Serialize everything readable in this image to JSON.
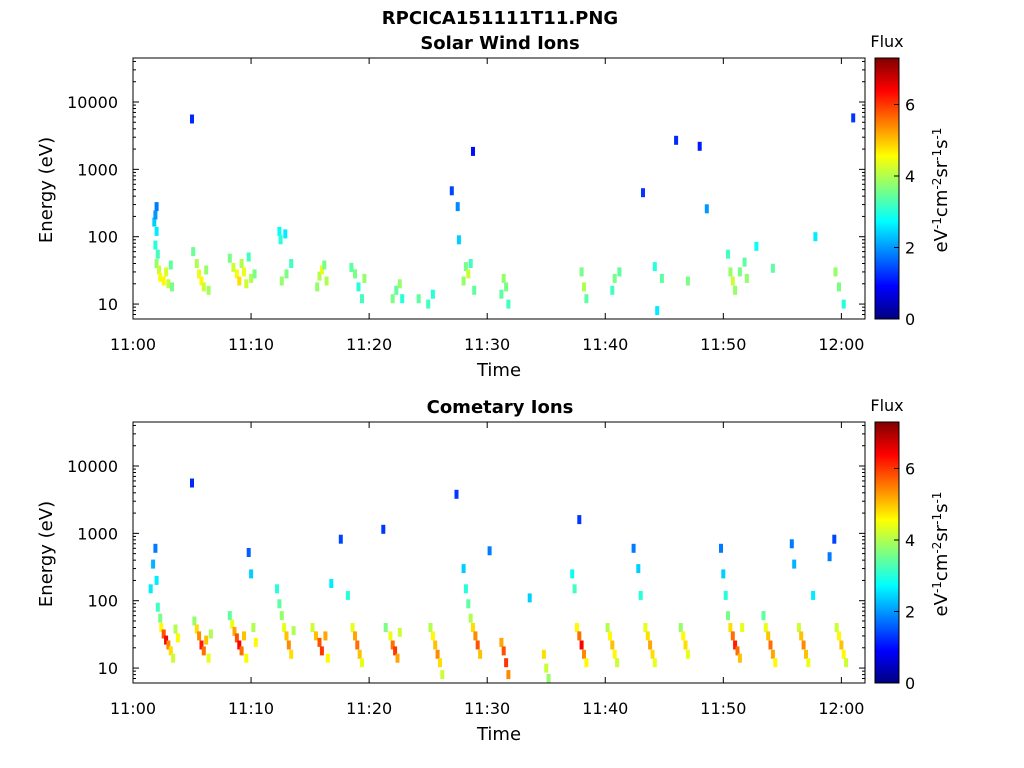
{
  "figure_title": "RPCICA151111T11.PNG",
  "chart_data": [
    {
      "type": "heatmap",
      "title": "Solar Wind Ions",
      "xlabel": "Time",
      "ylabel": "Energy (eV)",
      "x_ticks": [
        "11:00",
        "11:10",
        "11:20",
        "11:30",
        "11:40",
        "11:50",
        "12:00"
      ],
      "x_range_minutes": [
        0,
        62
      ],
      "y_ticks": [
        "10",
        "100",
        "1000",
        "10000"
      ],
      "y_scale": "log",
      "y_range": [
        6,
        45000
      ],
      "colorbar": {
        "title": "Flux",
        "label": "eV-1cm-2sr-1s-1",
        "ticks": [
          "0",
          "2",
          "4",
          "6"
        ],
        "range": [
          0,
          7.3
        ]
      },
      "points": [
        [
          1.8,
          165,
          2.4
        ],
        [
          1.9,
          210,
          2.0
        ],
        [
          2.0,
          280,
          1.8
        ],
        [
          2.0,
          120,
          2.6
        ],
        [
          1.9,
          75,
          3.0
        ],
        [
          2.1,
          55,
          3.2
        ],
        [
          2.0,
          40,
          3.8
        ],
        [
          2.2,
          32,
          4.2
        ],
        [
          2.3,
          25,
          4.5
        ],
        [
          2.6,
          22,
          4.6
        ],
        [
          2.8,
          30,
          4.3
        ],
        [
          3.0,
          20,
          4.1
        ],
        [
          3.2,
          38,
          3.4
        ],
        [
          3.3,
          18,
          3.6
        ],
        [
          5.0,
          5600,
          1.2
        ],
        [
          5.1,
          60,
          3.5
        ],
        [
          5.4,
          40,
          4.0
        ],
        [
          5.6,
          28,
          4.4
        ],
        [
          5.8,
          22,
          4.6
        ],
        [
          6.0,
          18,
          4.2
        ],
        [
          6.2,
          32,
          3.8
        ],
        [
          6.4,
          16,
          3.9
        ],
        [
          8.2,
          48,
          3.6
        ],
        [
          8.5,
          35,
          4.2
        ],
        [
          8.8,
          28,
          4.5
        ],
        [
          9.0,
          22,
          4.8
        ],
        [
          9.2,
          40,
          4.0
        ],
        [
          9.4,
          30,
          4.4
        ],
        [
          9.6,
          20,
          4.2
        ],
        [
          9.8,
          50,
          3.2
        ],
        [
          10.0,
          24,
          4.0
        ],
        [
          10.3,
          28,
          3.6
        ],
        [
          12.4,
          120,
          2.8
        ],
        [
          12.5,
          90,
          3.0
        ],
        [
          12.9,
          110,
          2.6
        ],
        [
          12.6,
          22,
          3.8
        ],
        [
          13.0,
          28,
          3.6
        ],
        [
          13.4,
          40,
          3.2
        ],
        [
          15.6,
          18,
          3.8
        ],
        [
          15.8,
          26,
          4.0
        ],
        [
          16.0,
          32,
          4.4
        ],
        [
          16.2,
          38,
          3.6
        ],
        [
          16.4,
          22,
          4.0
        ],
        [
          18.5,
          35,
          3.4
        ],
        [
          18.8,
          28,
          3.6
        ],
        [
          19.1,
          18,
          3.0
        ],
        [
          19.4,
          12,
          3.2
        ],
        [
          19.6,
          24,
          3.8
        ],
        [
          22.0,
          12,
          3.6
        ],
        [
          22.3,
          16,
          3.4
        ],
        [
          22.6,
          20,
          3.8
        ],
        [
          22.8,
          12,
          3.0
        ],
        [
          24.2,
          12,
          3.4
        ],
        [
          25.0,
          10,
          3.2
        ],
        [
          25.4,
          14,
          3.0
        ],
        [
          27.0,
          480,
          1.4
        ],
        [
          27.5,
          280,
          1.9
        ],
        [
          27.6,
          90,
          2.4
        ],
        [
          28.0,
          22,
          3.8
        ],
        [
          28.2,
          36,
          3.6
        ],
        [
          28.4,
          28,
          4.2
        ],
        [
          28.6,
          40,
          3.2
        ],
        [
          28.8,
          1850,
          1.0
        ],
        [
          28.9,
          16,
          3.4
        ],
        [
          31.2,
          14,
          3.4
        ],
        [
          31.4,
          24,
          3.8
        ],
        [
          31.6,
          18,
          3.6
        ],
        [
          31.8,
          10,
          3.2
        ],
        [
          38.0,
          30,
          3.6
        ],
        [
          38.2,
          18,
          4.0
        ],
        [
          38.4,
          12,
          3.4
        ],
        [
          40.6,
          16,
          3.2
        ],
        [
          40.8,
          24,
          3.6
        ],
        [
          41.2,
          30,
          3.4
        ],
        [
          43.2,
          450,
          1.3
        ],
        [
          44.2,
          36,
          3.0
        ],
        [
          44.4,
          8,
          2.6
        ],
        [
          44.8,
          24,
          3.4
        ],
        [
          46.0,
          2700,
          1.2
        ],
        [
          47.0,
          22,
          3.6
        ],
        [
          48.0,
          2200,
          1.1
        ],
        [
          48.6,
          260,
          2.0
        ],
        [
          50.4,
          55,
          3.2
        ],
        [
          50.6,
          30,
          3.8
        ],
        [
          50.8,
          22,
          4.2
        ],
        [
          51.0,
          16,
          3.8
        ],
        [
          51.4,
          30,
          3.6
        ],
        [
          51.8,
          42,
          3.4
        ],
        [
          52.0,
          24,
          3.8
        ],
        [
          52.8,
          72,
          2.8
        ],
        [
          54.2,
          34,
          3.4
        ],
        [
          57.8,
          100,
          2.6
        ],
        [
          59.5,
          30,
          3.8
        ],
        [
          59.8,
          18,
          3.6
        ],
        [
          60.2,
          10,
          3.0
        ],
        [
          61.0,
          5800,
          1.3
        ]
      ]
    },
    {
      "type": "heatmap",
      "title": "Cometary Ions",
      "xlabel": "Time",
      "ylabel": "Energy (eV)",
      "x_ticks": [
        "11:00",
        "11:10",
        "11:20",
        "11:30",
        "11:40",
        "11:50",
        "12:00"
      ],
      "x_range_minutes": [
        0,
        62
      ],
      "y_ticks": [
        "10",
        "100",
        "1000",
        "10000"
      ],
      "y_scale": "log",
      "y_range": [
        6,
        45000
      ],
      "colorbar": {
        "title": "Flux",
        "label": "eV-1cm-2sr-1s-1",
        "ticks": [
          "0",
          "2",
          "4",
          "6"
        ],
        "range": [
          0,
          7.3
        ]
      },
      "points": [
        [
          1.5,
          150,
          2.6
        ],
        [
          1.7,
          350,
          2.2
        ],
        [
          1.9,
          600,
          1.8
        ],
        [
          2.0,
          200,
          2.6
        ],
        [
          2.1,
          80,
          3.2
        ],
        [
          2.3,
          55,
          3.6
        ],
        [
          2.4,
          40,
          4.6
        ],
        [
          2.6,
          32,
          5.8
        ],
        [
          2.8,
          26,
          6.4
        ],
        [
          3.0,
          22,
          5.4
        ],
        [
          3.2,
          18,
          4.8
        ],
        [
          3.4,
          14,
          4.2
        ],
        [
          3.6,
          38,
          4.0
        ],
        [
          3.8,
          28,
          4.6
        ],
        [
          5.0,
          5600,
          1.2
        ],
        [
          5.2,
          50,
          3.8
        ],
        [
          5.4,
          38,
          4.8
        ],
        [
          5.6,
          30,
          5.4
        ],
        [
          5.8,
          22,
          6.2
        ],
        [
          6.0,
          18,
          5.6
        ],
        [
          6.2,
          26,
          5.0
        ],
        [
          6.4,
          14,
          4.4
        ],
        [
          6.6,
          32,
          4.0
        ],
        [
          8.2,
          60,
          3.4
        ],
        [
          8.4,
          45,
          4.4
        ],
        [
          8.6,
          35,
          5.2
        ],
        [
          8.8,
          28,
          5.8
        ],
        [
          9.0,
          22,
          6.4
        ],
        [
          9.2,
          18,
          5.6
        ],
        [
          9.4,
          30,
          5.0
        ],
        [
          9.6,
          14,
          4.6
        ],
        [
          9.8,
          520,
          1.6
        ],
        [
          10.0,
          250,
          2.4
        ],
        [
          10.2,
          40,
          4.0
        ],
        [
          10.4,
          24,
          4.6
        ],
        [
          12.2,
          150,
          3.0
        ],
        [
          12.4,
          90,
          3.4
        ],
        [
          12.6,
          60,
          3.8
        ],
        [
          12.8,
          40,
          4.4
        ],
        [
          13.0,
          30,
          5.0
        ],
        [
          13.2,
          22,
          5.4
        ],
        [
          13.4,
          16,
          4.8
        ],
        [
          13.6,
          36,
          4.0
        ],
        [
          15.2,
          40,
          4.2
        ],
        [
          15.5,
          30,
          5.0
        ],
        [
          15.8,
          24,
          5.8
        ],
        [
          16.0,
          18,
          6.0
        ],
        [
          16.3,
          30,
          5.2
        ],
        [
          16.5,
          14,
          4.6
        ],
        [
          16.8,
          180,
          2.6
        ],
        [
          17.6,
          820,
          1.4
        ],
        [
          18.2,
          120,
          3.0
        ],
        [
          18.6,
          40,
          4.4
        ],
        [
          18.8,
          30,
          5.2
        ],
        [
          19.0,
          22,
          5.6
        ],
        [
          19.2,
          16,
          5.0
        ],
        [
          19.4,
          12,
          4.4
        ],
        [
          21.2,
          1150,
          1.3
        ],
        [
          21.4,
          40,
          3.6
        ],
        [
          21.8,
          30,
          4.4
        ],
        [
          22.0,
          22,
          5.6
        ],
        [
          22.2,
          18,
          6.0
        ],
        [
          22.4,
          14,
          5.2
        ],
        [
          22.6,
          34,
          4.2
        ],
        [
          25.2,
          40,
          4.0
        ],
        [
          25.4,
          30,
          4.6
        ],
        [
          25.6,
          22,
          5.0
        ],
        [
          25.8,
          16,
          5.4
        ],
        [
          26.0,
          12,
          4.8
        ],
        [
          26.2,
          8,
          4.2
        ],
        [
          27.4,
          3800,
          1.3
        ],
        [
          28.0,
          300,
          2.4
        ],
        [
          28.2,
          150,
          3.0
        ],
        [
          28.4,
          90,
          3.4
        ],
        [
          28.6,
          55,
          4.0
        ],
        [
          28.8,
          40,
          4.8
        ],
        [
          29.0,
          30,
          5.4
        ],
        [
          29.2,
          22,
          5.8
        ],
        [
          29.4,
          16,
          5.0
        ],
        [
          30.2,
          550,
          1.8
        ],
        [
          31.2,
          24,
          5.2
        ],
        [
          31.4,
          18,
          5.8
        ],
        [
          31.6,
          12,
          6.0
        ],
        [
          31.8,
          8,
          5.4
        ],
        [
          33.6,
          110,
          2.4
        ],
        [
          34.8,
          16,
          4.8
        ],
        [
          35.0,
          10,
          4.2
        ],
        [
          35.2,
          7,
          3.8
        ],
        [
          37.2,
          250,
          2.8
        ],
        [
          37.4,
          150,
          3.2
        ],
        [
          37.6,
          40,
          4.6
        ],
        [
          37.8,
          30,
          5.6
        ],
        [
          38.0,
          22,
          6.4
        ],
        [
          38.2,
          16,
          5.4
        ],
        [
          38.4,
          12,
          4.6
        ],
        [
          37.8,
          1600,
          1.3
        ],
        [
          40.2,
          40,
          4.0
        ],
        [
          40.4,
          30,
          4.6
        ],
        [
          40.6,
          22,
          5.0
        ],
        [
          40.8,
          16,
          4.6
        ],
        [
          41.0,
          12,
          4.2
        ],
        [
          42.4,
          600,
          1.8
        ],
        [
          42.8,
          300,
          2.4
        ],
        [
          43.0,
          120,
          3.0
        ],
        [
          43.4,
          40,
          4.4
        ],
        [
          43.6,
          30,
          4.8
        ],
        [
          43.8,
          22,
          5.2
        ],
        [
          44.0,
          16,
          4.8
        ],
        [
          44.2,
          12,
          4.4
        ],
        [
          46.4,
          40,
          3.8
        ],
        [
          46.6,
          30,
          4.6
        ],
        [
          46.8,
          22,
          4.8
        ],
        [
          47.0,
          16,
          4.4
        ],
        [
          49.8,
          600,
          1.8
        ],
        [
          50.0,
          250,
          2.4
        ],
        [
          50.2,
          120,
          3.0
        ],
        [
          50.4,
          60,
          3.6
        ],
        [
          50.6,
          40,
          4.8
        ],
        [
          50.8,
          30,
          5.6
        ],
        [
          51.0,
          22,
          6.2
        ],
        [
          51.2,
          18,
          5.6
        ],
        [
          51.4,
          14,
          5.0
        ],
        [
          51.6,
          40,
          4.4
        ],
        [
          53.4,
          60,
          3.4
        ],
        [
          53.6,
          40,
          4.4
        ],
        [
          53.8,
          30,
          5.0
        ],
        [
          54.0,
          22,
          5.6
        ],
        [
          54.2,
          16,
          5.2
        ],
        [
          54.4,
          12,
          4.6
        ],
        [
          55.8,
          700,
          1.8
        ],
        [
          56.0,
          350,
          2.2
        ],
        [
          56.4,
          40,
          4.2
        ],
        [
          56.6,
          30,
          5.0
        ],
        [
          56.8,
          22,
          5.4
        ],
        [
          57.0,
          16,
          5.0
        ],
        [
          57.2,
          12,
          4.4
        ],
        [
          57.6,
          120,
          2.6
        ],
        [
          59.0,
          450,
          1.8
        ],
        [
          59.4,
          820,
          1.4
        ],
        [
          59.6,
          40,
          4.2
        ],
        [
          59.8,
          30,
          4.6
        ],
        [
          60.0,
          22,
          5.0
        ],
        [
          60.2,
          16,
          4.6
        ],
        [
          60.4,
          12,
          4.2
        ]
      ]
    }
  ]
}
